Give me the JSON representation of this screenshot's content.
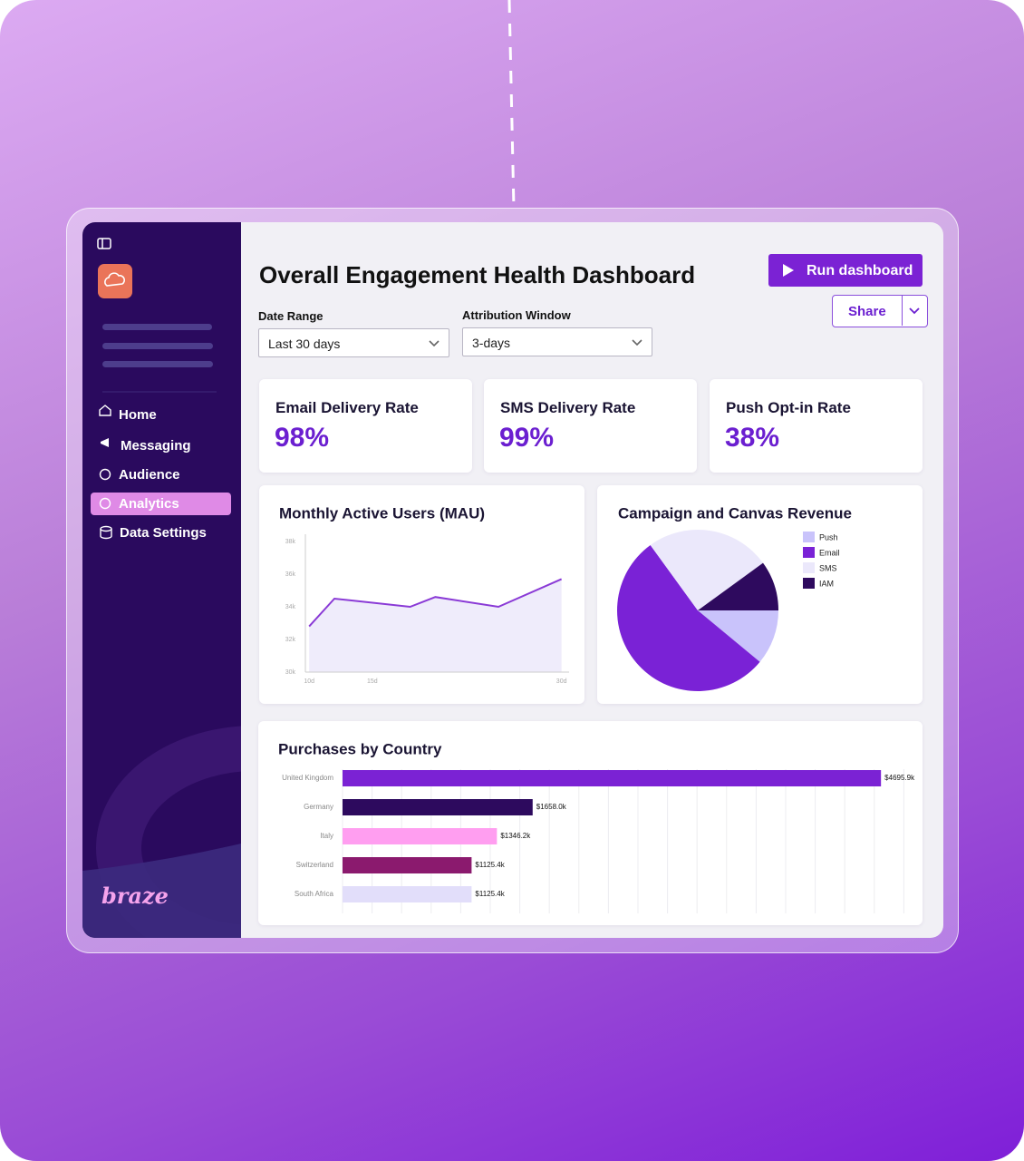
{
  "sidebar": {
    "nav": [
      "Home",
      "Messaging",
      "Audience",
      "Analytics",
      "Data Settings"
    ],
    "brand": "braze"
  },
  "header": {
    "title": "Overall Engagement Health Dashboard",
    "run_button": "Run dashboard",
    "share_button": "Share"
  },
  "filters": [
    {
      "label": "Date Range",
      "value": "Last 30 days"
    },
    {
      "label": "Attribution Window",
      "value": "3-days"
    }
  ],
  "kpis": [
    {
      "label": "Email Delivery Rate",
      "value": "98%"
    },
    {
      "label": "SMS Delivery Rate",
      "value": "99%"
    },
    {
      "label": "Push Opt-in Rate",
      "value": "38%"
    }
  ],
  "chart_data": [
    {
      "type": "line",
      "title": "Monthly Active Users (MAU)",
      "x": [
        10,
        12,
        18,
        20,
        25,
        30
      ],
      "values": [
        32800,
        34500,
        34000,
        34600,
        34000,
        35700
      ],
      "color": "#8a3ad6",
      "area_color": "#efecfb",
      "xlim": [
        9.7,
        30.6
      ],
      "xticks": [
        {
          "value": 10,
          "label": "10d"
        },
        {
          "value": 15,
          "label": "15d"
        },
        {
          "value": 30,
          "label": "30d"
        }
      ],
      "ylim": [
        30000,
        38000
      ],
      "yticks": [
        {
          "value": 30000,
          "label": "30k"
        },
        {
          "value": 32000,
          "label": "32k"
        },
        {
          "value": 34000,
          "label": "34k"
        },
        {
          "value": 36000,
          "label": "36k"
        },
        {
          "value": 38000,
          "label": "38k"
        }
      ]
    },
    {
      "type": "pie",
      "title": "Campaign and Canvas Revenue",
      "categories": [
        "Push",
        "Email",
        "SMS",
        "IAM"
      ],
      "values": [
        11,
        54,
        25,
        10
      ],
      "colors": [
        "#c9c3fb",
        "#7a22d6",
        "#ebe8fb",
        "#2e0a5e"
      ]
    },
    {
      "type": "hbar",
      "title": "Purchases by Country",
      "categories": [
        "United Kingdom",
        "Germany",
        "Italy",
        "Switzerland",
        "South Africa"
      ],
      "values": [
        4695900,
        1658000,
        1346200,
        1125400,
        1125400
      ],
      "value_labels": [
        "$4695.9k",
        "$1658.0k",
        "$1346.2k",
        "$1125.4k",
        "$1125.4k"
      ],
      "colors": [
        "#7b22d4",
        "#2d0a5e",
        "#ff9ef0",
        "#8b1a6e",
        "#e2defa"
      ],
      "xlim": [
        0,
        4900000
      ]
    }
  ]
}
